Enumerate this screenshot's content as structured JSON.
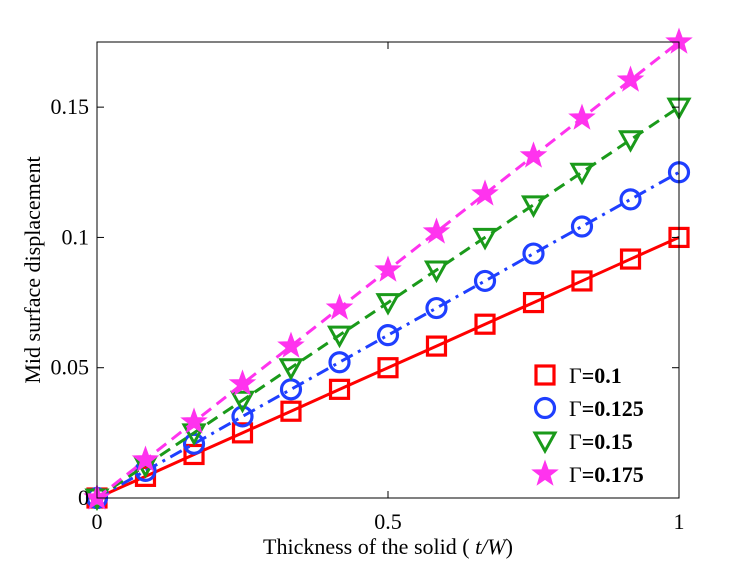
{
  "chart_data": {
    "type": "line",
    "title": "",
    "xlabel_prefix": "Thickness of the solid ( ",
    "xlabel_var": "t/W",
    "xlabel_suffix": ")",
    "ylabel": "Mid surface displacement",
    "xlim": [
      0,
      1
    ],
    "ylim": [
      0,
      0.175
    ],
    "grid": false,
    "legend_position": "bottom-right",
    "xticks": [
      0,
      0.5,
      1
    ],
    "xtick_labels": [
      "0",
      "0.5",
      "1"
    ],
    "yticks": [
      0,
      0.05,
      0.1,
      0.15
    ],
    "ytick_labels": [
      "0",
      "0.05",
      "0.1",
      "0.15"
    ],
    "x": [
      0,
      0.0833,
      0.1667,
      0.25,
      0.3333,
      0.4167,
      0.5,
      0.5833,
      0.6667,
      0.75,
      0.8333,
      0.9167,
      1.0
    ],
    "series": [
      {
        "name": "Γ=0.1",
        "gamma_symbol": "Γ",
        "gamma_value": "=0.1",
        "color": "#ff0000",
        "line_style": "solid",
        "marker": "square",
        "values": [
          0,
          0.0083,
          0.0167,
          0.025,
          0.0333,
          0.0417,
          0.05,
          0.0583,
          0.0667,
          0.075,
          0.0833,
          0.0917,
          0.1
        ]
      },
      {
        "name": "Γ=0.125",
        "gamma_symbol": "Γ",
        "gamma_value": "=0.125",
        "color": "#1f3fff",
        "line_style": "dashdot",
        "marker": "circle",
        "values": [
          0,
          0.0104,
          0.0208,
          0.0313,
          0.0417,
          0.0521,
          0.0625,
          0.0729,
          0.0833,
          0.0938,
          0.1042,
          0.1146,
          0.125
        ]
      },
      {
        "name": "Γ=0.15",
        "gamma_symbol": "Γ",
        "gamma_value": "=0.15",
        "color": "#1a9a1a",
        "line_style": "dashed",
        "marker": "triangle-down",
        "values": [
          0,
          0.0125,
          0.025,
          0.0375,
          0.05,
          0.0625,
          0.075,
          0.0875,
          0.1,
          0.1125,
          0.125,
          0.1375,
          0.15
        ]
      },
      {
        "name": "Γ=0.175",
        "gamma_symbol": "Γ",
        "gamma_value": "=0.175",
        "color": "#ff33ee",
        "line_style": "dashed",
        "marker": "star",
        "values": [
          0,
          0.0146,
          0.0292,
          0.0438,
          0.0583,
          0.0729,
          0.0875,
          0.1021,
          0.1167,
          0.1313,
          0.1458,
          0.1604,
          0.175
        ]
      }
    ]
  }
}
